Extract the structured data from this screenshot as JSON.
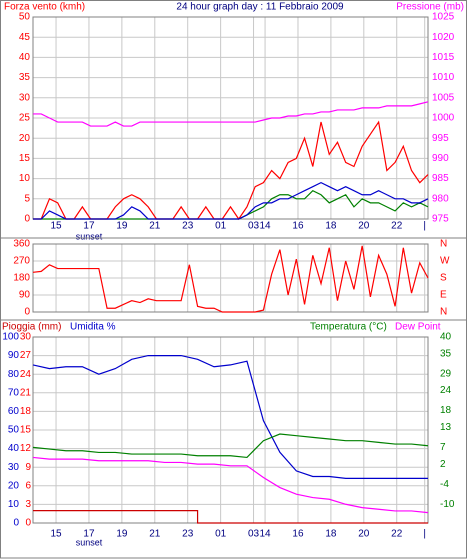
{
  "chart_data": [
    {
      "type": "line",
      "title": "24 hour graph day : 11 Febbraio 2009",
      "ylabel": "Forza vento (kmh)",
      "y2label": "Pressione (mb)",
      "ycolor": "#ff0000",
      "y2color": "#ff00ff",
      "grid": true,
      "xlim": [
        0,
        24
      ],
      "xticks": [
        {
          "value": 1.4,
          "label": "15"
        },
        {
          "value": 3.4,
          "label": "17"
        },
        {
          "value": 5.4,
          "label": "19"
        },
        {
          "value": 7.4,
          "label": "21"
        },
        {
          "value": 9.4,
          "label": "23"
        },
        {
          "value": 11.4,
          "label": "01"
        },
        {
          "value": 13.4,
          "label": "03"
        },
        {
          "value": 14.1,
          "label": "14"
        },
        {
          "value": 16.1,
          "label": "16"
        },
        {
          "value": 18.1,
          "label": "18"
        },
        {
          "value": 20.1,
          "label": "20"
        },
        {
          "value": 22.1,
          "label": "22"
        },
        {
          "value": 23.8,
          "label": "|"
        }
      ],
      "annotation": "sunset",
      "ylim": [
        0,
        50
      ],
      "yticks": [
        0,
        5,
        10,
        15,
        20,
        25,
        30,
        35,
        40,
        45,
        50
      ],
      "y2lim": [
        975,
        1025
      ],
      "y2ticks": [
        975,
        980,
        985,
        990,
        995,
        1000,
        1005,
        1010,
        1015,
        1020,
        1025
      ],
      "x": [
        0,
        0.5,
        1,
        1.5,
        2,
        2.5,
        3,
        3.5,
        4,
        4.5,
        5,
        5.5,
        6,
        6.5,
        7,
        7.5,
        8,
        8.5,
        9,
        9.5,
        10,
        10.5,
        11,
        11.5,
        12,
        12.5,
        13,
        13.5,
        14,
        14.5,
        15,
        15.5,
        16,
        16.5,
        17,
        17.5,
        18,
        18.5,
        19,
        19.5,
        20,
        20.5,
        21,
        21.5,
        22,
        22.5,
        23,
        23.5,
        24
      ],
      "series": [
        {
          "color": "#ff00ff",
          "axis": "y2",
          "values": [
            1001,
            1001,
            1000,
            999,
            999,
            999,
            999,
            998,
            998,
            998,
            999,
            998,
            998,
            999,
            999,
            999,
            999,
            999,
            999,
            999,
            999,
            999,
            999,
            999,
            999,
            999,
            999,
            999,
            999.5,
            1000,
            1000,
            1000.5,
            1000.5,
            1001,
            1001,
            1001.5,
            1001.5,
            1002,
            1002,
            1002,
            1002.5,
            1002.5,
            1002.5,
            1003,
            1003,
            1003,
            1003,
            1003.5,
            1004
          ]
        },
        {
          "color": "#008000",
          "values": [
            0,
            0,
            0,
            0,
            0,
            0,
            0,
            0,
            0,
            0,
            0,
            0,
            0,
            0,
            0,
            0,
            0,
            0,
            0,
            0,
            0,
            0,
            0,
            0,
            0,
            0,
            1,
            2,
            3,
            5,
            6,
            6,
            5,
            5,
            7,
            6,
            4,
            5,
            6,
            3,
            5,
            4,
            4,
            3,
            2,
            4,
            3,
            4,
            3
          ]
        },
        {
          "color": "#ff0000",
          "values": [
            0,
            0,
            5,
            4,
            0,
            0,
            3,
            0,
            0,
            0,
            3,
            5,
            6,
            5,
            3,
            0,
            0,
            0,
            3,
            0,
            0,
            3,
            0,
            0,
            3,
            0,
            3,
            8,
            9,
            12,
            10,
            14,
            15,
            20,
            13,
            24,
            16,
            19,
            14,
            13,
            18,
            21,
            24,
            12,
            14,
            18,
            12,
            9,
            11
          ]
        },
        {
          "color": "#0000cc",
          "values": [
            0,
            0,
            2,
            1,
            0,
            0,
            0,
            0,
            0,
            0,
            0,
            1,
            3,
            2,
            0,
            0,
            0,
            0,
            0,
            0,
            0,
            0,
            0,
            0,
            0,
            0,
            1,
            3,
            4,
            4,
            5,
            5,
            6,
            7,
            8,
            9,
            8,
            7,
            8,
            7,
            6,
            6,
            7,
            6,
            5,
            5,
            4,
            4,
            5
          ]
        }
      ]
    },
    {
      "type": "line",
      "ycolor": "#ff0000",
      "y2color": "#ff0000",
      "grid": true,
      "xlim": [
        0,
        24
      ],
      "ylim": [
        0,
        360
      ],
      "yticks": [
        0,
        90,
        180,
        270,
        360
      ],
      "y2lim": [
        0,
        360
      ],
      "y2ticks": [
        {
          "value": 0,
          "label": "N"
        },
        {
          "value": 90,
          "label": "E"
        },
        {
          "value": 180,
          "label": "S"
        },
        {
          "value": 270,
          "label": "W"
        },
        {
          "value": 360,
          "label": "N"
        }
      ],
      "x": [
        0,
        0.5,
        1,
        1.5,
        2,
        2.5,
        3,
        3.5,
        4,
        4.5,
        5,
        5.5,
        6,
        6.5,
        7,
        7.5,
        8,
        8.5,
        9,
        9.5,
        10,
        10.5,
        11,
        11.5,
        12,
        12.5,
        13,
        13.5,
        14,
        14.5,
        15,
        15.5,
        16,
        16.5,
        17,
        17.5,
        18,
        18.5,
        19,
        19.5,
        20,
        20.5,
        21,
        21.5,
        22,
        22.5,
        23,
        23.5,
        24
      ],
      "series": [
        {
          "color": "#ff0000",
          "values": [
            210,
            215,
            250,
            230,
            230,
            230,
            230,
            230,
            230,
            20,
            20,
            40,
            60,
            50,
            70,
            60,
            60,
            60,
            60,
            250,
            30,
            20,
            20,
            0,
            0,
            0,
            0,
            0,
            10,
            200,
            330,
            90,
            280,
            40,
            300,
            150,
            340,
            60,
            270,
            120,
            350,
            80,
            300,
            200,
            30,
            340,
            100,
            260,
            180
          ]
        }
      ]
    },
    {
      "type": "line",
      "ycolor": "#0000cc",
      "y2color": "#008000",
      "y3color": "#ff0000",
      "grid": true,
      "xlim": [
        0,
        24
      ],
      "xticks": [
        {
          "value": 1.4,
          "label": "15"
        },
        {
          "value": 3.4,
          "label": "17"
        },
        {
          "value": 5.4,
          "label": "19"
        },
        {
          "value": 7.4,
          "label": "21"
        },
        {
          "value": 9.4,
          "label": "23"
        },
        {
          "value": 11.4,
          "label": "01"
        },
        {
          "value": 13.4,
          "label": "03"
        },
        {
          "value": 14.1,
          "label": "14"
        },
        {
          "value": 16.1,
          "label": "16"
        },
        {
          "value": 18.1,
          "label": "18"
        },
        {
          "value": 20.1,
          "label": "20"
        },
        {
          "value": 22.1,
          "label": "22"
        },
        {
          "value": 23.8,
          "label": "|"
        }
      ],
      "annotation": "sunset",
      "ylim": [
        0,
        100
      ],
      "yticks": [
        0,
        10,
        20,
        30,
        40,
        50,
        60,
        70,
        80,
        90,
        100
      ],
      "y3lim": [
        0,
        30
      ],
      "y3ticks": [
        0,
        3,
        6,
        9,
        12,
        15,
        18,
        21,
        24,
        27,
        30
      ],
      "y2lim": [
        -15.6,
        40
      ],
      "y2ticks": [
        -10,
        -4,
        2,
        7,
        13,
        18,
        24,
        29,
        35,
        40
      ],
      "x": [
        0,
        1,
        2,
        3,
        4,
        5,
        6,
        7,
        8,
        9,
        10,
        11,
        12,
        13,
        14,
        15,
        16,
        17,
        18,
        19,
        20,
        21,
        22,
        23,
        24
      ],
      "series": [
        {
          "name": "Umidita %",
          "color": "#0000cc",
          "values": [
            85,
            83,
            84,
            84,
            80,
            83,
            88,
            90,
            90,
            90,
            88,
            84,
            85,
            87,
            55,
            38,
            28,
            25,
            25,
            24,
            24,
            24,
            24,
            24,
            24
          ]
        },
        {
          "name": "Pioggia (mm)",
          "color": "#cc0000",
          "axis": "y3",
          "step": true,
          "values": [
            2,
            2,
            2,
            2,
            2,
            2,
            2,
            2,
            2,
            2,
            0,
            0,
            0,
            0,
            0,
            0,
            0,
            0,
            0,
            0,
            0,
            0,
            0,
            0,
            0
          ]
        },
        {
          "name": "Temperatura (°C)",
          "color": "#008000",
          "axis": "y2",
          "values": [
            7,
            6.5,
            6,
            6,
            5.5,
            5.5,
            5,
            5,
            5,
            5,
            4.5,
            4.5,
            4.5,
            4,
            9,
            11,
            10.5,
            10,
            9.5,
            9,
            9,
            8.5,
            8,
            8,
            7.5
          ]
        },
        {
          "name": "Dew Point",
          "color": "#ff00ff",
          "axis": "y2",
          "values": [
            4,
            3.5,
            3.5,
            3.5,
            3,
            3,
            3,
            3,
            2.5,
            2.5,
            2,
            2,
            1.5,
            1.5,
            -2,
            -5,
            -7,
            -8,
            -8.5,
            -10,
            -11,
            -11.5,
            -12,
            -12,
            -12.5
          ]
        }
      ]
    }
  ]
}
